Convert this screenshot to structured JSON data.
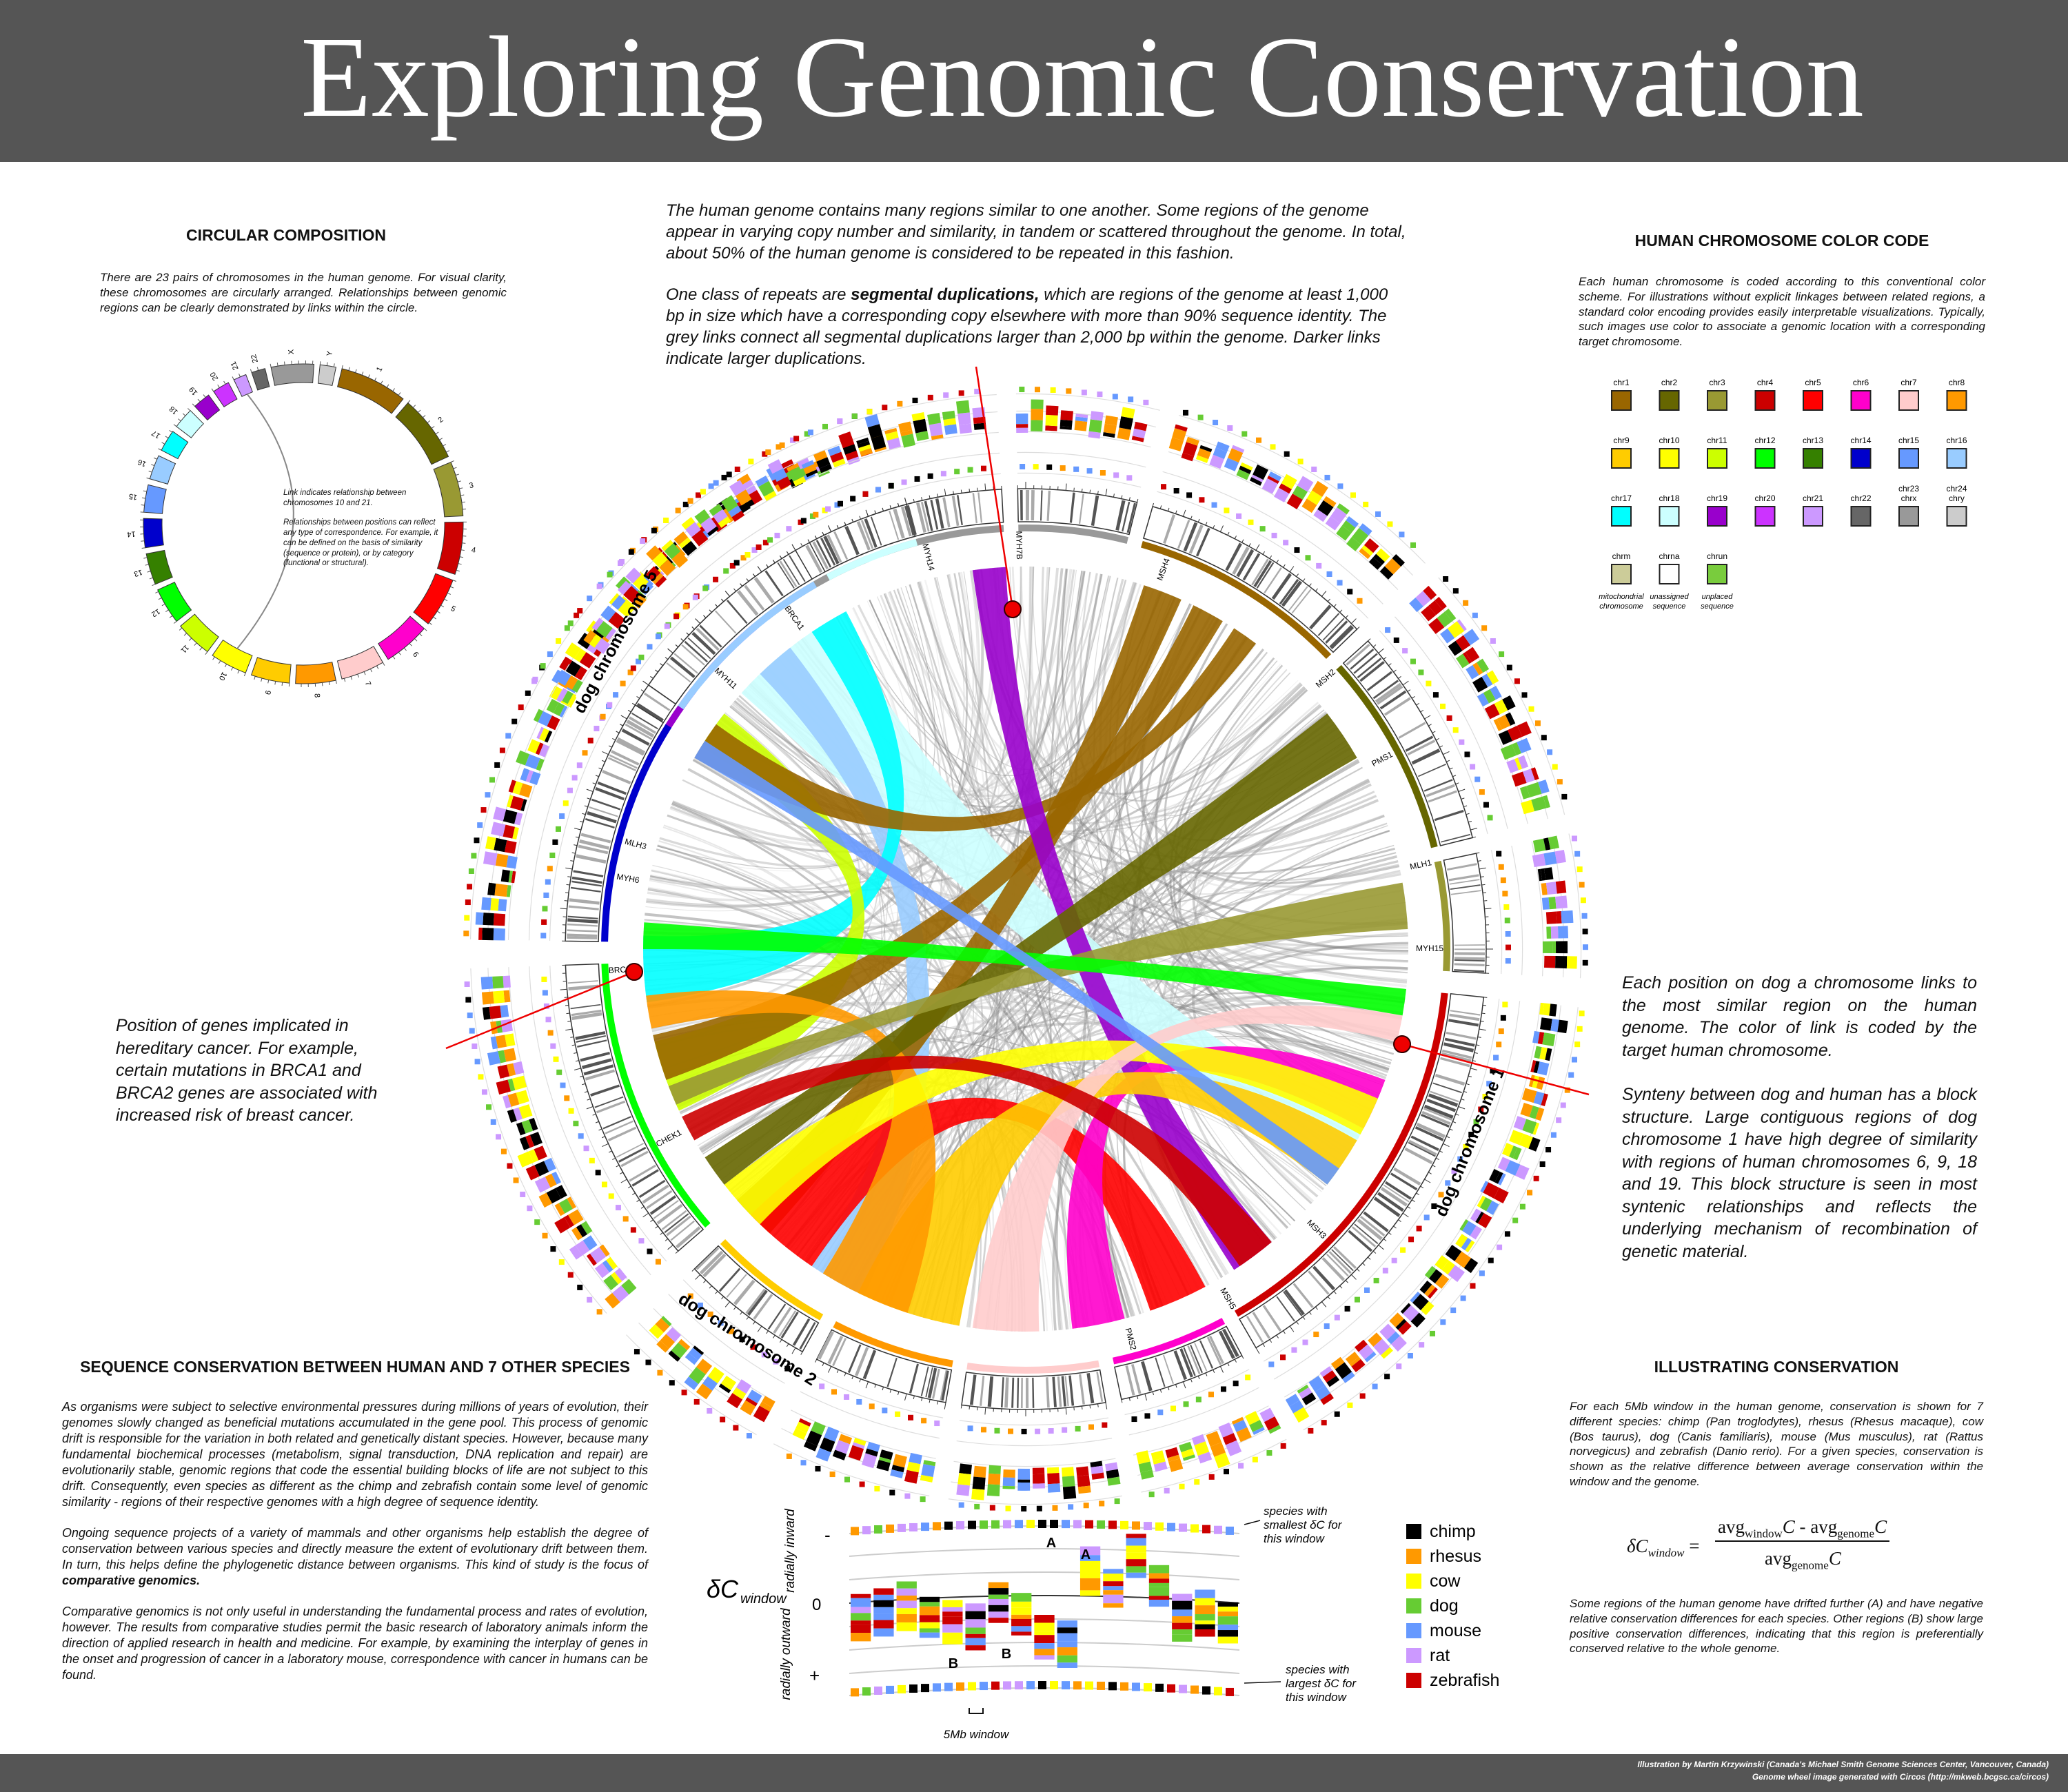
{
  "header": {
    "title": "Exploring Genomic Conservation"
  },
  "circular_composition": {
    "heading": "CIRCULAR COMPOSITION",
    "text": "There are 23 pairs of chromosomes in the human genome. For visual clarity, these chromosomes are circularly arranged. Relationships between genomic regions can be clearly demonstrated by links within the circle.",
    "ideogram_labels": [
      "1",
      "2",
      "3",
      "4",
      "5",
      "6",
      "7",
      "8",
      "9",
      "10",
      "11",
      "12",
      "13",
      "14",
      "15",
      "16",
      "17",
      "18",
      "19",
      "20",
      "21",
      "22",
      "X",
      "Y"
    ],
    "link_note": [
      "Link indicates relationship between chromosomes 10 and 21.",
      "Relationships between positions can reflect any type of correspondence. For example, it can be defined on the basis of similarity (sequence or protein), or by category (functional or structural)."
    ]
  },
  "segmental_duplications": {
    "paragraph1": "The human genome contains many regions similar to one another. Some regions of the genome appear in varying copy number and similarity, in tandem or scattered throughout the genome. In total, about 50% of the human genome is considered to be repeated in this fashion.",
    "paragraph2": {
      "before": "One class of repeats are ",
      "bold": "segmental duplications,",
      "after": " which are regions of the genome at least 1,000 bp in size which have a corresponding copy elsewhere with more than 90% sequence identity. The grey links connect all segmental duplications larger than 2,000 bp within the genome. Darker links indicate larger duplications."
    }
  },
  "color_code": {
    "heading": "HUMAN CHROMOSOME COLOR CODE",
    "text": "Each human chromosome is coded according to this conventional color scheme. For illustrations without explicit linkages between related regions, a standard color encoding provides easily interpretable visualizations. Typically, such images use color to associate a genomic location with a corresponding target chromosome.",
    "chips": [
      {
        "label": [
          "chr1"
        ],
        "color": "#996600"
      },
      {
        "label": [
          "chr2"
        ],
        "color": "#666600"
      },
      {
        "label": [
          "chr3"
        ],
        "color": "#999933"
      },
      {
        "label": [
          "chr4"
        ],
        "color": "#cc0000"
      },
      {
        "label": [
          "chr5"
        ],
        "color": "#ff0000"
      },
      {
        "label": [
          "chr6"
        ],
        "color": "#ff00cc"
      },
      {
        "label": [
          "chr7"
        ],
        "color": "#ffcccc"
      },
      {
        "label": [
          "chr8"
        ],
        "color": "#ff9900"
      },
      {
        "label": [
          "chr9"
        ],
        "color": "#ffcc00"
      },
      {
        "label": [
          "chr10"
        ],
        "color": "#ffff00"
      },
      {
        "label": [
          "chr11"
        ],
        "color": "#ccff00"
      },
      {
        "label": [
          "chr12"
        ],
        "color": "#00ff00"
      },
      {
        "label": [
          "chr13"
        ],
        "color": "#358000"
      },
      {
        "label": [
          "chr14"
        ],
        "color": "#0000cc"
      },
      {
        "label": [
          "chr15"
        ],
        "color": "#6699ff"
      },
      {
        "label": [
          "chr16"
        ],
        "color": "#99ccff"
      },
      {
        "label": [
          "chr17"
        ],
        "color": "#00ffff"
      },
      {
        "label": [
          "chr18"
        ],
        "color": "#ccffff"
      },
      {
        "label": [
          "chr19"
        ],
        "color": "#9900cc"
      },
      {
        "label": [
          "chr20"
        ],
        "color": "#cc33ff"
      },
      {
        "label": [
          "chr21"
        ],
        "color": "#cc99ff"
      },
      {
        "label": [
          "chr22"
        ],
        "color": "#666666"
      },
      {
        "label": [
          "chr23",
          "chrx"
        ],
        "color": "#999999"
      },
      {
        "label": [
          "chr24",
          "chry"
        ],
        "color": "#cccccc"
      },
      {
        "label": [
          "chrm"
        ],
        "color": "#cccc99",
        "caption": [
          "mitochondrial",
          "chromosome"
        ]
      },
      {
        "label": [
          "chrna"
        ],
        "color": "#ffffff",
        "caption": [
          "unassigned",
          "sequence"
        ]
      },
      {
        "label": [
          "chrun"
        ],
        "color": "#79cc3d",
        "caption": [
          "unplaced",
          "sequence"
        ]
      }
    ]
  },
  "circos": {
    "dog_chromosomes": [
      "dog chromosome 5",
      "dog chromosome 1",
      "dog chromosome 2"
    ],
    "genes": [
      "MYH7B",
      "MYH14",
      "MSH4",
      "MSH2",
      "PMS1",
      "MLH1",
      "MYH15",
      "MSH3",
      "MSH5",
      "PMS2",
      "CHEK1",
      "BRCA2",
      "MYH6",
      "MLH3",
      "MYH11",
      "BRCA1"
    ]
  },
  "annotations": {
    "gene_position": "Position of genes implicated in hereditary cancer. For example, certain mutations in BRCA1 and BRCA2 genes are associated with increased risk of breast cancer.",
    "links": [
      "Each position on dog a chromosome links to the most similar region on the human genome. The color of link is coded by the target human chromosome.",
      "Synteny between dog and human has a block structure. Large contiguous regions of dog chromosome 1 have high degree of similarity with regions of human chromosomes 6, 9, 18 and 19. This block structure is seen in most syntenic relationships and reflects the underlying mechanism of recombination of genetic material."
    ]
  },
  "sequence_conservation": {
    "heading": "SEQUENCE CONSERVATION BETWEEN HUMAN AND 7 OTHER SPECIES",
    "paragraph1": "As organisms were subject to selective environmental pressures during millions of years of evolution, their genomes slowly changed as beneficial mutations accumulated in the gene pool. This process of genomic drift is responsible for the variation in both related and genetically distant species. However, because many fundamental biochemical processes (metabolism, signal transduction, DNA replication and repair) are evolutionarily stable, genomic regions that code the essential building blocks of life are not subject to this drift. Consequently, even species as different as the chimp and zebrafish contain some level of genomic similarity - regions of their respective genomes with a high degree of sequence identity.",
    "paragraph2": {
      "before": "Ongoing sequence projects of a variety of mammals and other organisms help establish the degree of conservation between various species and directly measure the extent of evolutionary drift between them. In turn, this helps define the phylogenetic distance between organisms. This kind of study is the focus of ",
      "bold": "comparative genomics."
    },
    "paragraph3": "Comparative genomics is not only useful in understanding the fundamental process and rates of evolution, however. The results from comparative studies permit the basic research of laboratory animals inform the direction of applied research in health and medicine. For example, by examining the interplay of genes in the onset and progression of cancer in a laboratory mouse, correspondence with cancer in humans can be found."
  },
  "illustration": {
    "axis_symbol": "δC",
    "axis_sub": "window",
    "inward": "radially inward",
    "outward": "radially outward",
    "minus": "-",
    "zero": "0",
    "plus": "+",
    "marks": [
      "A",
      "A",
      "B",
      "B"
    ],
    "smallest": [
      "species with",
      "smallest δC for",
      "this window"
    ],
    "largest": [
      "species with",
      "largest δC for",
      "this window"
    ],
    "window": "5Mb window"
  },
  "species_legend": [
    {
      "name": "chimp",
      "color": "#000000"
    },
    {
      "name": "rhesus",
      "color": "#ff9900"
    },
    {
      "name": "cow",
      "color": "#ffff00"
    },
    {
      "name": "dog",
      "color": "#66cc33"
    },
    {
      "name": "mouse",
      "color": "#6699ff"
    },
    {
      "name": "rat",
      "color": "#cc99ff"
    },
    {
      "name": "zebrafish",
      "color": "#cc0000"
    }
  ],
  "illustrating_conservation": {
    "heading": "ILLUSTRATING CONSERVATION",
    "text_a": "For each 5Mb window in the human genome, conservation is shown for 7 different species: chimp (Pan troglodytes), rhesus (Rhesus macaque), cow (Bos taurus), dog (Canis familiaris), mouse (Mus musculus), rat (Rattus norvegicus) and zebrafish (Danio rerio). For a given species, conservation is shown as the relative difference between average conservation within the window and the genome.",
    "formula": {
      "lhs": "δC",
      "lhs_sub": "window",
      "eq": "=",
      "num1": "avg",
      "num1_sub": "window",
      "num1_tail": "C -",
      "num2": "avg",
      "num2_sub": "genome",
      "num2_tail": "C",
      "den": "avg",
      "den_sub": "genome",
      "den_tail": "C"
    },
    "text_b": "Some regions of the human genome have drifted further (A) and have negative relative conservation differences for each species. Other regions (B) show large positive conservation differences, indicating that this region is preferentially conserved relative to the whole genome."
  },
  "footer": {
    "lines": [
      "Illustration by Martin Krzywinski (Canada's Michael Smith Genome Sciences Center, Vancouver, Canada)",
      "Genome wheel image generated with Circos (http://mkweb.bcgsc.ca/circos)"
    ]
  }
}
